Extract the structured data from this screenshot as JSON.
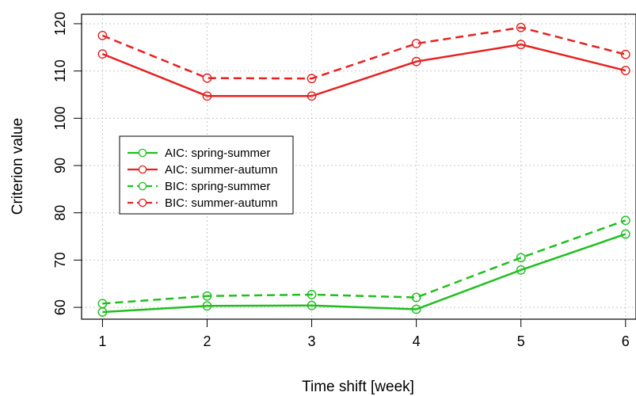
{
  "chart_data": {
    "type": "line",
    "title": "",
    "xlabel": "Time shift [week]",
    "ylabel": "Criterion value",
    "x": [
      1,
      2,
      3,
      4,
      5,
      6
    ],
    "xlim": [
      0.8,
      6.1
    ],
    "ylim": [
      57.5,
      122
    ],
    "xticks": [
      "1",
      "2",
      "3",
      "4",
      "5",
      "6"
    ],
    "yticks": [
      "60",
      "70",
      "80",
      "90",
      "100",
      "110",
      "120"
    ],
    "grid": true,
    "legend_position": "center-left",
    "series": [
      {
        "name": "AIC: spring-summer",
        "color": "#1fbf1f",
        "dashed": false,
        "values": [
          59.0,
          60.3,
          60.4,
          59.6,
          67.9,
          75.5
        ]
      },
      {
        "name": "AIC: summer-autumn",
        "color": "#e82020",
        "dashed": false,
        "values": [
          113.6,
          104.7,
          104.7,
          112.0,
          115.6,
          110.1
        ]
      },
      {
        "name": "BIC: spring-summer",
        "color": "#1fbf1f",
        "dashed": true,
        "values": [
          60.8,
          62.4,
          62.7,
          62.1,
          70.5,
          78.4
        ]
      },
      {
        "name": "BIC: summer-autumn",
        "color": "#e82020",
        "dashed": true,
        "values": [
          117.5,
          108.5,
          108.4,
          115.8,
          119.2,
          113.5
        ]
      }
    ]
  }
}
